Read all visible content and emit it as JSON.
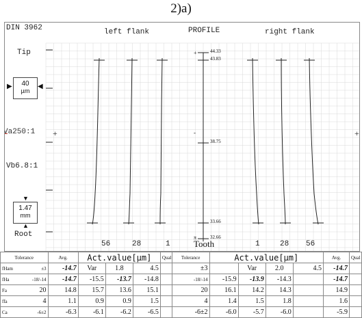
{
  "figure_label": "2)a)",
  "header": {
    "standard": "DIN 3962",
    "left_flank": "left flank",
    "profile": "PROFILE",
    "right_flank": "right flank"
  },
  "side_labels": {
    "tip": "Tip",
    "scale_top_value": "40",
    "scale_top_unit": "µm",
    "va": "Va250:1",
    "vb": "Vb6.8:1",
    "scale_bottom_value": "1.47",
    "scale_bottom_unit": "mm",
    "root": "Root"
  },
  "profile_scale": {
    "ticks": [
      "44.33",
      "43.83",
      "38.75",
      "33.66",
      "32.66"
    ],
    "markers": {
      "top": "+",
      "middle": "-",
      "bottom": "π"
    }
  },
  "left_teeth": [
    "56",
    "28",
    "1"
  ],
  "right_teeth": [
    "1",
    "28",
    "56"
  ],
  "tooth_label": "Tooth",
  "table": {
    "headers": {
      "tolerance": "Tolerance",
      "avg": "Avg.",
      "act_value": "Act.value[µm]",
      "qual": "Qual"
    },
    "left_rows": [
      {
        "param": "fHam",
        "tol": "±3",
        "avg": "-14.7",
        "vals": [
          "Var",
          "1.8",
          "4.5"
        ]
      },
      {
        "param": "fHa",
        "tol": "-18/-14",
        "avg": "-14.7",
        "vals": [
          "-15.5",
          "-13.7",
          "-14.8"
        ]
      },
      {
        "param": "Fa",
        "tol": "20",
        "avg": "14.8",
        "vals": [
          "15.7",
          "13.6",
          "15.1"
        ]
      },
      {
        "param": "ffa",
        "tol": "4",
        "avg": "1.1",
        "vals": [
          "0.9",
          "0.9",
          "1.5"
        ]
      },
      {
        "param": "Ca",
        "tol": "-6±2",
        "avg": "-6.3",
        "vals": [
          "-6.1",
          "-6.2",
          "-6.5"
        ]
      }
    ],
    "right_rows": [
      {
        "tol": "±3",
        "vals": [
          "Var",
          "2.0",
          "4.5"
        ],
        "avg": "-14.7"
      },
      {
        "tol": "-18/-14",
        "vals": [
          "-15.9",
          "-13.9",
          "-14.3"
        ],
        "avg": "-14.7"
      },
      {
        "tol": "20",
        "vals": [
          "16.1",
          "14.2",
          "14.3"
        ],
        "avg": "14.9"
      },
      {
        "tol": "4",
        "vals": [
          "1.4",
          "1.5",
          "1.8"
        ],
        "avg": "1.6"
      },
      {
        "tol": "-6±2",
        "vals": [
          "-6.0",
          "-5.7",
          "-6.0"
        ],
        "avg": "-5.9"
      }
    ]
  },
  "colors": {
    "grid": "#d8d8d8",
    "trace": "#222222",
    "accent_red": "#c0392b"
  }
}
